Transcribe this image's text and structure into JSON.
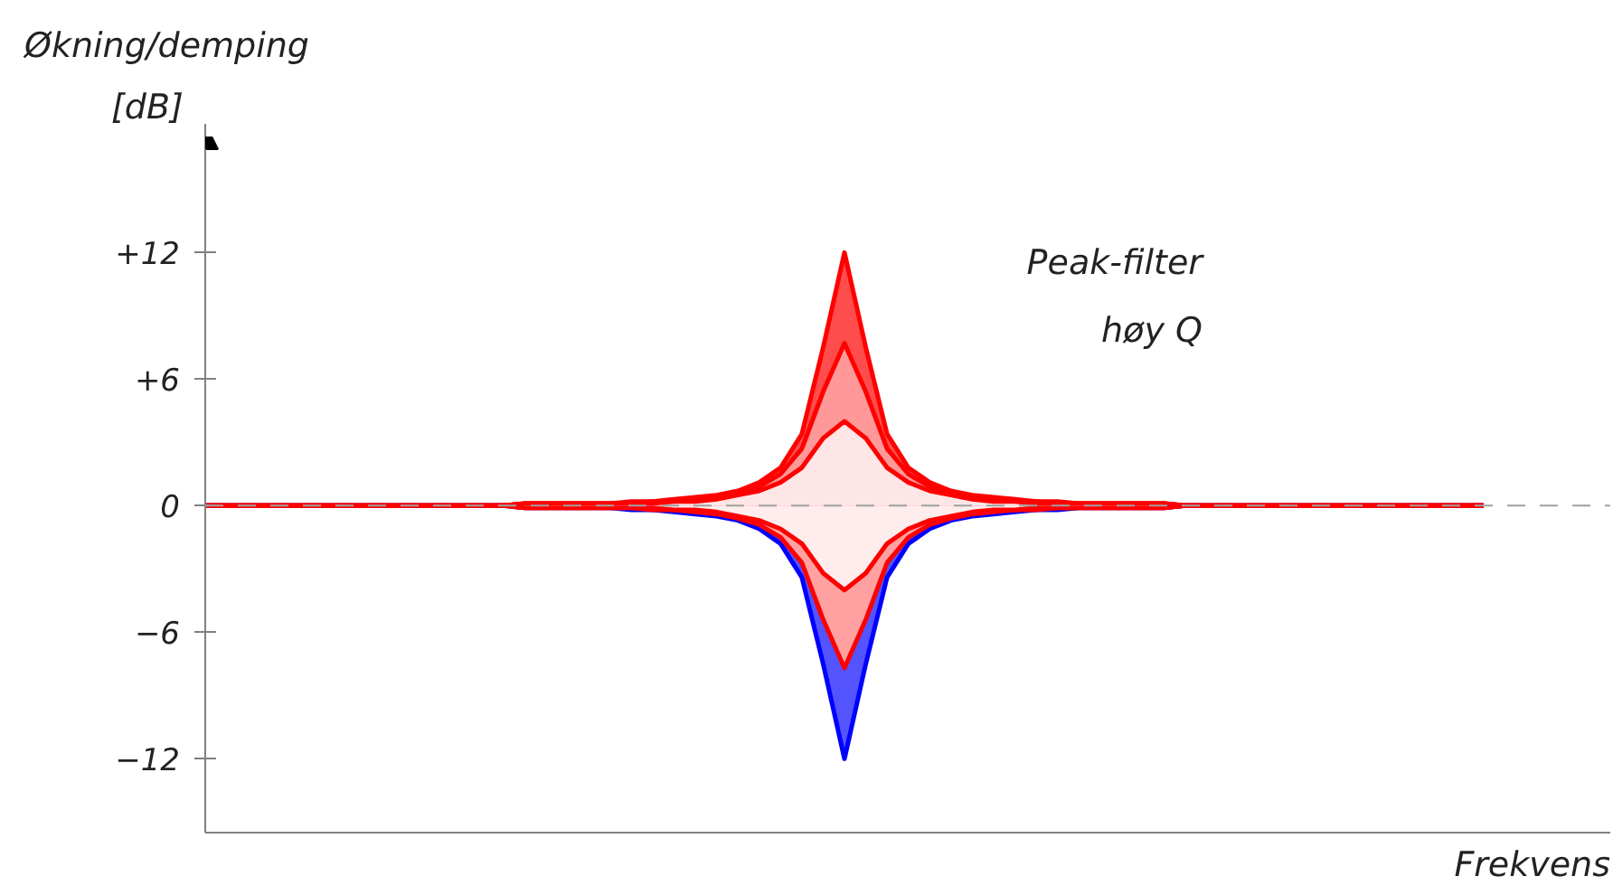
{
  "chart_data": {
    "type": "area",
    "title": "Økning/demping",
    "ylabel": "[dB]",
    "xlabel": "Frekvens",
    "annotations": [
      "Peak-filter\nhøy Q"
    ],
    "categories": [
      null,
      null,
      null,
      null,
      null,
      null,
      null,
      null,
      null,
      null,
      null,
      null,
      null,
      null,
      null,
      null,
      null,
      null,
      null,
      null,
      null,
      null,
      null,
      null,
      null,
      null,
      null,
      null,
      null,
      null,
      null,
      null,
      null,
      null,
      null,
      null,
      null,
      null,
      null,
      null,
      null,
      null,
      null,
      null,
      null,
      null,
      null,
      null,
      null,
      null,
      null,
      null,
      null,
      null,
      null,
      null,
      null,
      null,
      null,
      null,
      null
    ],
    "ylim": [
      -15.5,
      17.5
    ],
    "yticks": [
      {
        "value": 12,
        "label": "+12"
      },
      {
        "value": 6,
        "label": "+6"
      },
      0,
      -6,
      -12
    ],
    "grid": false,
    "ref_lines": [
      {
        "axis": "y",
        "value": 0,
        "color": "#a0a0a0",
        "line_style": "dashed"
      }
    ],
    "series": [
      {
        "color": "#ff0000",
        "values": [
          0,
          0,
          0,
          0,
          0,
          0,
          0,
          0,
          0,
          0,
          0,
          0,
          0,
          0,
          0,
          0.1,
          0.1,
          0.1,
          0.1,
          0.1,
          0.2,
          0.2,
          0.3,
          0.4,
          0.5,
          0.7,
          1.1,
          1.8,
          3.4,
          7.5,
          12,
          7.5,
          3.4,
          1.8,
          1.1,
          0.7,
          0.5,
          0.4,
          0.3,
          0.2,
          0.2,
          0.1,
          0.1,
          0.1,
          0.1,
          0.1,
          0,
          0,
          0,
          0,
          0,
          0,
          0,
          0,
          0,
          0,
          0,
          0,
          0,
          0,
          0
        ]
      },
      {
        "color": "#ff0000",
        "values": [
          0,
          0,
          0,
          0,
          0,
          0,
          0,
          0,
          0,
          0,
          0,
          0,
          0,
          0,
          0,
          0.1,
          0.1,
          0.1,
          0.1,
          0.1,
          0.1,
          0.2,
          0.2,
          0.3,
          0.4,
          0.6,
          0.9,
          1.5,
          2.7,
          5.4,
          7.7,
          5.4,
          2.7,
          1.5,
          0.9,
          0.6,
          0.4,
          0.3,
          0.2,
          0.2,
          0.1,
          0.1,
          0.1,
          0.1,
          0.1,
          0.1,
          0,
          0,
          0,
          0,
          0,
          0,
          0,
          0,
          0,
          0,
          0,
          0,
          0,
          0,
          0
        ]
      },
      {
        "color": "#ff0000",
        "values": [
          0,
          0,
          0,
          0,
          0,
          0,
          0,
          0,
          0,
          0,
          0,
          0,
          0,
          0,
          0,
          0.1,
          0.1,
          0.1,
          0.1,
          0.1,
          0.1,
          0.1,
          0.2,
          0.2,
          0.3,
          0.5,
          0.7,
          1.1,
          1.8,
          3.2,
          4.0,
          3.2,
          1.8,
          1.1,
          0.7,
          0.5,
          0.3,
          0.2,
          0.2,
          0.1,
          0.1,
          0.1,
          0.1,
          0.1,
          0.1,
          0.1,
          0,
          0,
          0,
          0,
          0,
          0,
          0,
          0,
          0,
          0,
          0,
          0,
          0,
          0,
          0
        ]
      },
      {
        "color": "#0000ff",
        "values": [
          0,
          0,
          0,
          0,
          0,
          0,
          0,
          0,
          0,
          0,
          0,
          0,
          0,
          0,
          0,
          -0.1,
          -0.1,
          -0.1,
          -0.1,
          -0.1,
          -0.2,
          -0.2,
          -0.3,
          -0.4,
          -0.5,
          -0.7,
          -1.1,
          -1.8,
          -3.4,
          -7.5,
          -12,
          -7.5,
          -3.4,
          -1.8,
          -1.1,
          -0.7,
          -0.5,
          -0.4,
          -0.3,
          -0.2,
          -0.2,
          -0.1,
          -0.1,
          -0.1,
          -0.1,
          -0.1,
          0,
          0,
          0,
          0,
          0,
          0,
          0,
          0,
          0,
          0,
          0,
          0,
          0,
          0,
          0
        ]
      },
      {
        "color": "#ff0000",
        "values": [
          0,
          0,
          0,
          0,
          0,
          0,
          0,
          0,
          0,
          0,
          0,
          0,
          0,
          0,
          0,
          -0.1,
          -0.1,
          -0.1,
          -0.1,
          -0.1,
          -0.1,
          -0.2,
          -0.2,
          -0.3,
          -0.4,
          -0.6,
          -0.9,
          -1.5,
          -2.7,
          -5.4,
          -7.7,
          -5.4,
          -2.7,
          -1.5,
          -0.9,
          -0.6,
          -0.4,
          -0.3,
          -0.2,
          -0.2,
          -0.1,
          -0.1,
          -0.1,
          -0.1,
          -0.1,
          -0.1,
          0,
          0,
          0,
          0,
          0,
          0,
          0,
          0,
          0,
          0,
          0,
          0,
          0,
          0,
          0
        ]
      },
      {
        "color": "#ff0000",
        "values": [
          0,
          0,
          0,
          0,
          0,
          0,
          0,
          0,
          0,
          0,
          0,
          0,
          0,
          0,
          0,
          -0.1,
          -0.1,
          -0.1,
          -0.1,
          -0.1,
          -0.1,
          -0.1,
          -0.2,
          -0.2,
          -0.3,
          -0.5,
          -0.7,
          -1.1,
          -1.8,
          -3.2,
          -4.0,
          -3.2,
          -1.8,
          -1.1,
          -0.7,
          -0.5,
          -0.3,
          -0.2,
          -0.2,
          -0.1,
          -0.1,
          -0.1,
          -0.1,
          -0.1,
          -0.1,
          -0.1,
          0,
          0,
          0,
          0,
          0,
          0,
          0,
          0,
          0,
          0,
          0,
          0,
          0,
          0,
          0
        ]
      }
    ]
  }
}
